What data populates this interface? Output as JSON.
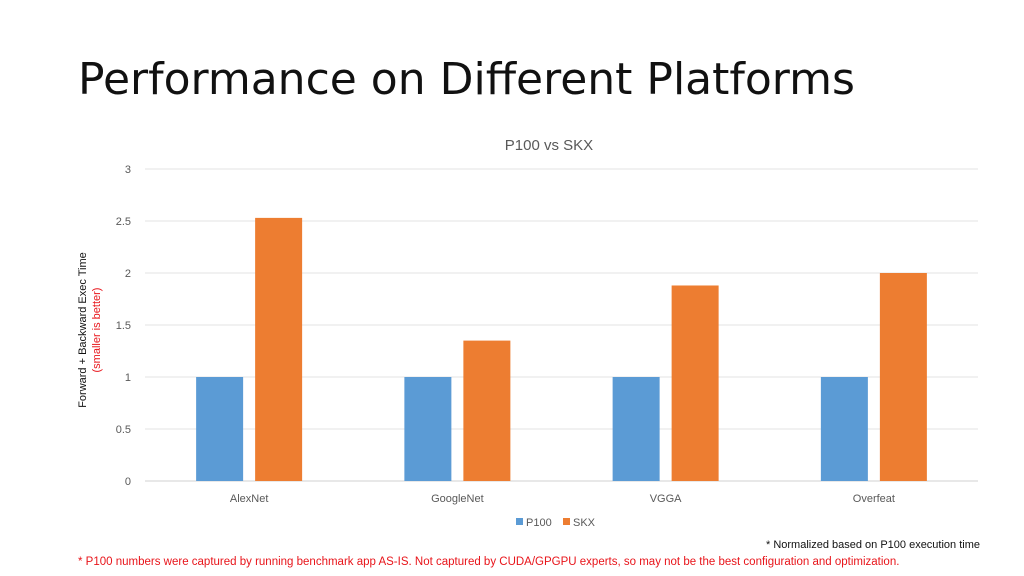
{
  "slide": {
    "title": "Performance on Different Platforms",
    "normalization_note": "* Normalized based on P100 execution time",
    "disclaimer": "* P100 numbers were captured by running benchmark app AS-IS. Not captured by CUDA/GPGPU experts, so may not be the best configuration and optimization."
  },
  "chart_data": {
    "type": "bar",
    "title": "P100 vs SKX",
    "categories": [
      "AlexNet",
      "GoogleNet",
      "VGGA",
      "Overfeat"
    ],
    "series": [
      {
        "name": "P100",
        "values": [
          1,
          1,
          1,
          1
        ],
        "color": "#5b9bd5"
      },
      {
        "name": "SKX",
        "values": [
          2.53,
          1.35,
          1.88,
          2.0
        ],
        "color": "#ed7d31"
      }
    ],
    "ylabel": "Forward + Backward Exec Time",
    "ylabel_note": "(smaller is better)",
    "ylabel_note_color": "#e8141a",
    "ylim": [
      0,
      3
    ],
    "yticks": [
      "0",
      "0.5",
      "1",
      "1.5",
      "2",
      "2.5",
      "3"
    ],
    "grid": true,
    "legend_position": "bottom"
  }
}
